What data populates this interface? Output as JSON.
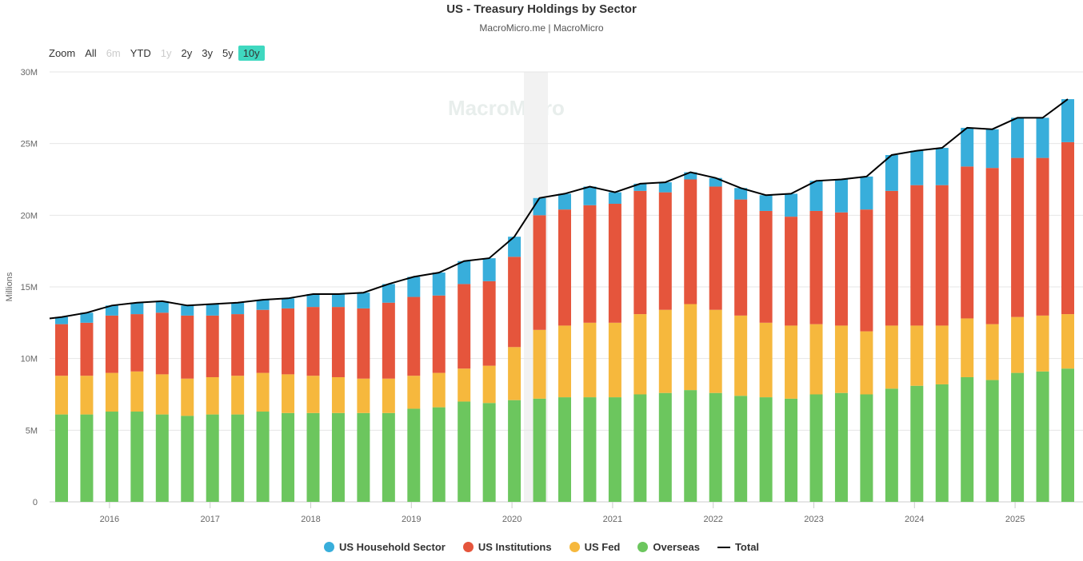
{
  "title": "US - Treasury Holdings by Sector",
  "subtitle": "MacroMicro.me | MacroMicro",
  "watermark": "MacroMicro",
  "zoom": {
    "label": "Zoom",
    "options": [
      "All",
      "6m",
      "YTD",
      "1y",
      "2y",
      "3y",
      "5y",
      "10y"
    ],
    "disabled": [
      "6m",
      "1y"
    ],
    "selected": "10y"
  },
  "chart_data": {
    "type": "bar",
    "stacked": true,
    "title": "US - Treasury Holdings by Sector",
    "ylabel": "Millions",
    "ylim": [
      0,
      30000000
    ],
    "yticks": [
      "0",
      "5M",
      "10M",
      "15M",
      "20M",
      "25M",
      "30M"
    ],
    "xticks": [
      "2016",
      "2017",
      "2018",
      "2019",
      "2020",
      "2021",
      "2022",
      "2023",
      "2024",
      "2025"
    ],
    "grid": true,
    "legend": "bottom",
    "categories": [
      "2015Q3",
      "2015Q4",
      "2016Q1",
      "2016Q2",
      "2016Q3",
      "2016Q4",
      "2017Q1",
      "2017Q2",
      "2017Q3",
      "2017Q4",
      "2018Q1",
      "2018Q2",
      "2018Q3",
      "2018Q4",
      "2019Q1",
      "2019Q2",
      "2019Q3",
      "2019Q4",
      "2020Q1",
      "2020Q2",
      "2020Q3",
      "2020Q4",
      "2021Q1",
      "2021Q2",
      "2021Q3",
      "2021Q4",
      "2022Q1",
      "2022Q2",
      "2022Q3",
      "2022Q4",
      "2023Q1",
      "2023Q2",
      "2023Q3",
      "2023Q4",
      "2024Q1",
      "2024Q2",
      "2024Q3",
      "2024Q4",
      "2025Q1",
      "2025Q2",
      "2025Q3"
    ],
    "series": [
      {
        "name": "Overseas",
        "color": "#6cc65e",
        "values": [
          6.1,
          6.1,
          6.3,
          6.3,
          6.1,
          6.0,
          6.1,
          6.1,
          6.3,
          6.2,
          6.2,
          6.2,
          6.2,
          6.2,
          6.5,
          6.6,
          7.0,
          6.9,
          7.1,
          7.2,
          7.3,
          7.3,
          7.3,
          7.5,
          7.6,
          7.8,
          7.6,
          7.4,
          7.3,
          7.2,
          7.5,
          7.6,
          7.5,
          7.9,
          8.1,
          8.2,
          8.7,
          8.5,
          9.0,
          9.1,
          9.3
        ]
      },
      {
        "name": "US Fed",
        "color": "#f6b83d",
        "values": [
          2.7,
          2.7,
          2.7,
          2.8,
          2.8,
          2.6,
          2.6,
          2.7,
          2.7,
          2.7,
          2.6,
          2.5,
          2.4,
          2.4,
          2.3,
          2.4,
          2.3,
          2.6,
          3.7,
          4.8,
          5.0,
          5.2,
          5.2,
          5.6,
          5.8,
          6.0,
          5.8,
          5.6,
          5.2,
          5.1,
          4.9,
          4.7,
          4.4,
          4.4,
          4.2,
          4.1,
          4.1,
          3.9,
          3.9,
          3.9,
          3.8
        ]
      },
      {
        "name": "US Institutions",
        "color": "#e5553c",
        "values": [
          3.6,
          3.7,
          4.0,
          4.0,
          4.3,
          4.4,
          4.3,
          4.3,
          4.4,
          4.6,
          4.8,
          4.9,
          4.9,
          5.3,
          5.5,
          5.4,
          5.9,
          5.9,
          6.3,
          8.0,
          8.1,
          8.2,
          8.3,
          8.6,
          8.2,
          8.7,
          8.6,
          8.1,
          7.8,
          7.6,
          7.9,
          7.9,
          8.5,
          9.4,
          9.8,
          9.8,
          10.6,
          10.9,
          11.1,
          11.0,
          12.0
        ]
      },
      {
        "name": "US Household Sector",
        "color": "#38aedb",
        "values": [
          0.5,
          0.7,
          0.7,
          0.8,
          0.8,
          0.7,
          0.8,
          0.8,
          0.7,
          0.7,
          0.9,
          0.9,
          1.1,
          1.3,
          1.4,
          1.6,
          1.6,
          1.6,
          1.4,
          1.2,
          1.1,
          1.3,
          0.8,
          0.5,
          0.7,
          0.5,
          0.6,
          0.8,
          1.1,
          1.6,
          2.1,
          2.3,
          2.3,
          2.5,
          2.4,
          2.6,
          2.7,
          2.7,
          2.8,
          2.8,
          3.0
        ]
      }
    ],
    "total": {
      "name": "Total",
      "color": "#000000"
    },
    "value_unit": "millions (values in units of 1M on the axis)"
  },
  "legend": [
    {
      "name": "US Household Sector",
      "color": "#38aedb"
    },
    {
      "name": "US Institutions",
      "color": "#e5553c"
    },
    {
      "name": "US Fed",
      "color": "#f6b83d"
    },
    {
      "name": "Overseas",
      "color": "#6cc65e"
    },
    {
      "name": "Total",
      "color": "#000000"
    }
  ]
}
